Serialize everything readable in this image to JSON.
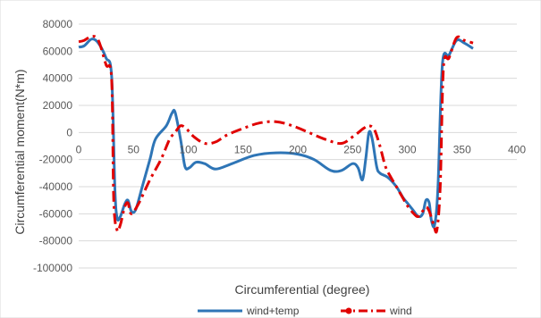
{
  "chart_data": {
    "type": "line",
    "title": "",
    "xlabel": "Circumferential (degree)",
    "ylabel": "Circumferential moment(N*m)",
    "xlim": [
      0,
      400
    ],
    "ylim": [
      -100000,
      80000
    ],
    "x_ticks": [
      "0",
      "50",
      "100",
      "150",
      "200",
      "250",
      "300",
      "350",
      "400"
    ],
    "y_ticks": [
      "80000",
      "60000",
      "40000",
      "20000",
      "0",
      "-20000",
      "-40000",
      "-60000",
      "-80000",
      "-100000"
    ],
    "grid": true,
    "legend_position": "bottom",
    "series": [
      {
        "name": "wind+temp",
        "color": "#2e75b6",
        "style": "solid",
        "points": [
          [
            0,
            63000
          ],
          [
            5,
            64000
          ],
          [
            12,
            69000
          ],
          [
            18,
            66000
          ],
          [
            25,
            55000
          ],
          [
            30,
            42000
          ],
          [
            33,
            -40000
          ],
          [
            35,
            -63000
          ],
          [
            38,
            -62000
          ],
          [
            42,
            -53000
          ],
          [
            45,
            -50000
          ],
          [
            48,
            -58000
          ],
          [
            52,
            -57000
          ],
          [
            58,
            -40000
          ],
          [
            65,
            -20000
          ],
          [
            70,
            -5000
          ],
          [
            80,
            5000
          ],
          [
            85,
            14000
          ],
          [
            88,
            15000
          ],
          [
            93,
            -5000
          ],
          [
            97,
            -25000
          ],
          [
            101,
            -26000
          ],
          [
            107,
            -22000
          ],
          [
            115,
            -23000
          ],
          [
            125,
            -27000
          ],
          [
            140,
            -23000
          ],
          [
            160,
            -17000
          ],
          [
            180,
            -15000
          ],
          [
            200,
            -16000
          ],
          [
            215,
            -20000
          ],
          [
            230,
            -28000
          ],
          [
            240,
            -28000
          ],
          [
            250,
            -23000
          ],
          [
            255,
            -26000
          ],
          [
            259,
            -35000
          ],
          [
            262,
            -20000
          ],
          [
            265,
            0
          ],
          [
            268,
            -5000
          ],
          [
            272,
            -25000
          ],
          [
            275,
            -30000
          ],
          [
            282,
            -33000
          ],
          [
            290,
            -40000
          ],
          [
            296,
            -48000
          ],
          [
            300,
            -52000
          ],
          [
            305,
            -57000
          ],
          [
            310,
            -62000
          ],
          [
            314,
            -60000
          ],
          [
            317,
            -50000
          ],
          [
            320,
            -52000
          ],
          [
            322,
            -65000
          ],
          [
            325,
            -68000
          ],
          [
            328,
            -40000
          ],
          [
            332,
            50000
          ],
          [
            338,
            57000
          ],
          [
            345,
            68000
          ],
          [
            352,
            66000
          ],
          [
            360,
            62000
          ]
        ]
      },
      {
        "name": "wind",
        "color": "#e00000",
        "style": "dashdot",
        "points": [
          [
            0,
            67000
          ],
          [
            5,
            68000
          ],
          [
            12,
            71000
          ],
          [
            18,
            68000
          ],
          [
            25,
            50000
          ],
          [
            30,
            40000
          ],
          [
            32,
            -50000
          ],
          [
            35,
            -72000
          ],
          [
            38,
            -68000
          ],
          [
            42,
            -55000
          ],
          [
            45,
            -52000
          ],
          [
            48,
            -60000
          ],
          [
            55,
            -52000
          ],
          [
            65,
            -35000
          ],
          [
            75,
            -20000
          ],
          [
            83,
            -5000
          ],
          [
            88,
            0
          ],
          [
            93,
            5000
          ],
          [
            98,
            3000
          ],
          [
            105,
            -3000
          ],
          [
            115,
            -8000
          ],
          [
            125,
            -7000
          ],
          [
            135,
            -2000
          ],
          [
            150,
            3000
          ],
          [
            165,
            7000
          ],
          [
            180,
            8000
          ],
          [
            195,
            5000
          ],
          [
            210,
            0
          ],
          [
            225,
            -5000
          ],
          [
            240,
            -8000
          ],
          [
            252,
            -2000
          ],
          [
            260,
            3000
          ],
          [
            265,
            5000
          ],
          [
            270,
            2000
          ],
          [
            275,
            -10000
          ],
          [
            280,
            -25000
          ],
          [
            285,
            -33000
          ],
          [
            290,
            -40000
          ],
          [
            295,
            -47000
          ],
          [
            300,
            -54000
          ],
          [
            306,
            -60000
          ],
          [
            310,
            -62000
          ],
          [
            314,
            -58000
          ],
          [
            317,
            -55000
          ],
          [
            320,
            -58000
          ],
          [
            324,
            -68000
          ],
          [
            327,
            -72000
          ],
          [
            330,
            -40000
          ],
          [
            333,
            48000
          ],
          [
            338,
            55000
          ],
          [
            345,
            70000
          ],
          [
            352,
            68000
          ],
          [
            360,
            66000
          ]
        ]
      }
    ]
  }
}
